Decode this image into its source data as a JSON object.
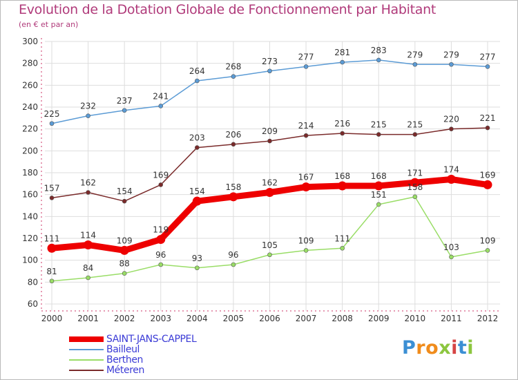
{
  "title": "Evolution de la Dotation Globale de Fonctionnement par Habitant",
  "subtitle": "(en € et par an)",
  "logo": {
    "text": "Proxiti",
    "letters": [
      "P",
      "r",
      "o",
      "x",
      "i",
      "t",
      "i"
    ],
    "colors": [
      "#3b8fd4",
      "#f08c1c",
      "#f08c1c",
      "#8cc63f",
      "#d64545",
      "#3b8fd4",
      "#8cc63f"
    ]
  },
  "chart_data": {
    "type": "line",
    "x": [
      2000,
      2001,
      2002,
      2003,
      2004,
      2005,
      2006,
      2007,
      2008,
      2009,
      2010,
      2011,
      2012
    ],
    "ylim": [
      60,
      300
    ],
    "yticks": [
      60,
      80,
      100,
      120,
      140,
      160,
      180,
      200,
      220,
      240,
      260,
      280,
      300
    ],
    "grid": true,
    "legend_position": "bottom-left",
    "series": [
      {
        "name": "SAINT-JANS-CAPPEL",
        "color": "#ee0000",
        "values": [
          111,
          114,
          109,
          119,
          154,
          158,
          162,
          167,
          168,
          168,
          171,
          174,
          169
        ]
      },
      {
        "name": "Bailleul",
        "color": "#5b9bd5",
        "values": [
          225,
          232,
          237,
          241,
          264,
          268,
          273,
          277,
          281,
          283,
          279,
          279,
          277
        ]
      },
      {
        "name": "Berthen",
        "color": "#99dd66",
        "values": [
          81,
          84,
          88,
          96,
          93,
          96,
          105,
          109,
          111,
          151,
          158,
          103,
          109
        ]
      },
      {
        "name": "Méteren",
        "color": "#7a2a2a",
        "values": [
          157,
          162,
          154,
          169,
          203,
          206,
          209,
          214,
          216,
          215,
          215,
          220,
          221
        ]
      }
    ]
  }
}
